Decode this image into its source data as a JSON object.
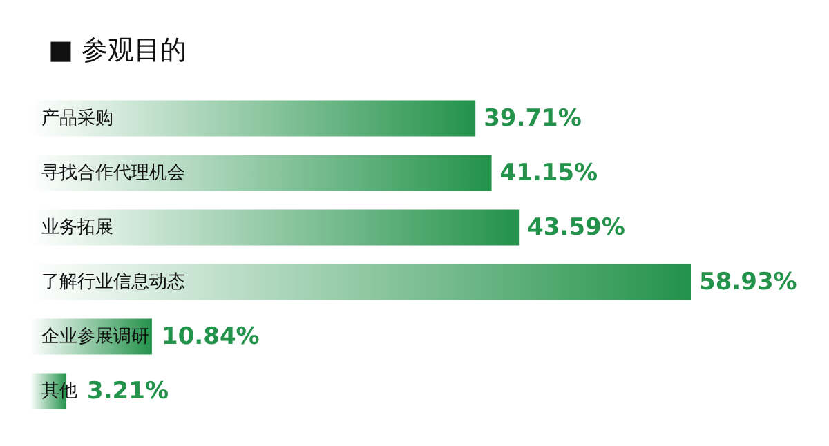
{
  "chart_data": {
    "type": "bar",
    "orientation": "horizontal",
    "title": "■ 参观目的",
    "categories": [
      "产品采购",
      "寻找合作代理机会",
      "业务拓展",
      "了解行业信息动态",
      "企业参展调研",
      "其他"
    ],
    "values": [
      39.71,
      41.15,
      43.59,
      58.93,
      10.84,
      3.21
    ],
    "value_labels": [
      "39.71%",
      "41.15%",
      "43.59%",
      "58.93%",
      "10.84%",
      "3.21%"
    ],
    "color": "#23924a",
    "tick_labels": "y"
  }
}
